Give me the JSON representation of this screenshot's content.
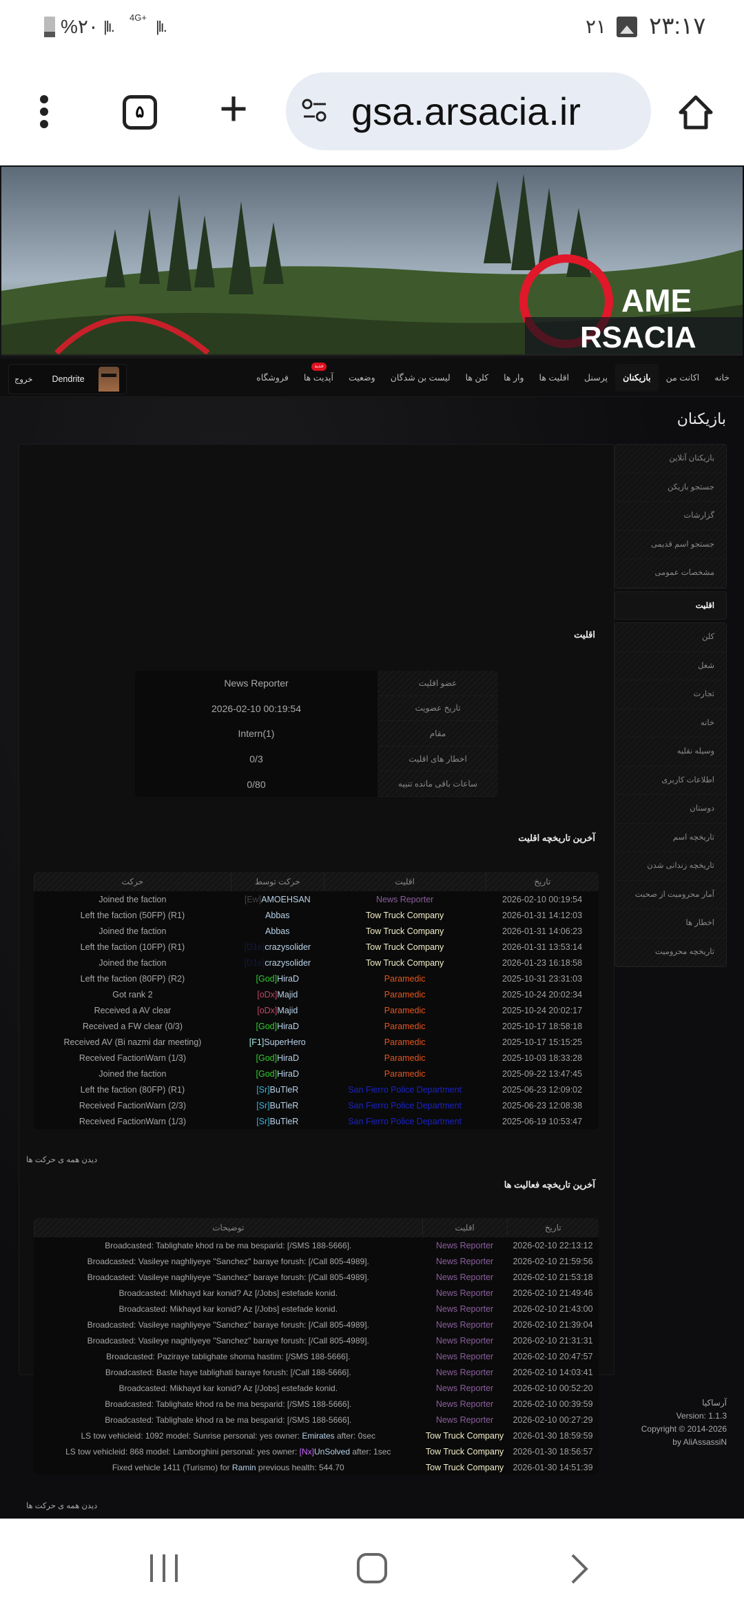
{
  "status_bar": {
    "time": "۲۳:۱۷",
    "notif_count": "۲۱",
    "battery": "%۲۰",
    "network": "4G+",
    "icons": [
      "gallery-icon",
      "battery-icon",
      "signal-icon"
    ]
  },
  "browser": {
    "url": "gsa.arsacia.ir",
    "tab_count": "۵",
    "icons": [
      "menu-dots-icon",
      "tabs-icon",
      "plus-icon",
      "site-settings-icon",
      "home-icon"
    ]
  },
  "banner": {
    "logo_text_top": "AME",
    "logo_text_bottom": "RSACIA",
    "brand_color": "#e0182a"
  },
  "nav": {
    "items": [
      "خانه",
      "اکانت من",
      "بازیکنان",
      "پرسنل",
      "اقلیت ها",
      "وار ها",
      "کلن ها",
      "لیست بن شدگان",
      "وضعیت",
      "آپدیت ها",
      "فروشگاه"
    ],
    "active_index": 2,
    "badge": "جدید",
    "badge_index": 9,
    "user": "Dendrite",
    "logout": "خروج"
  },
  "page_title": "بازیکنان",
  "sidebar": {
    "group1": [
      "بازیکنان آنلاین",
      "جستجو بازیکن",
      "گزارشات",
      "جستجو اسم قدیمی",
      "مشخصات عمومی"
    ],
    "active": "اقلیت",
    "group2": [
      "کلن",
      "شغل",
      "تجارت",
      "خانه",
      "وسیله نقلیه",
      "اطلاعات کاربری",
      "دوستان",
      "تاریخچه اسم",
      "تاریخچه زندانی شدن",
      "آمار محرومیت از صحبت",
      "اخطار ها",
      "تاریخچه محرومیت"
    ]
  },
  "faction_section": {
    "title": "اقلیت",
    "rows": [
      {
        "label": "عضو اقلیت",
        "value": "News Reporter"
      },
      {
        "label": "تاریخ عضویت",
        "value": "2026-02-10 00:19:54"
      },
      {
        "label": "مقام",
        "value": "Intern(1)"
      },
      {
        "label": "اخطار های اقلیت",
        "value": "0/3"
      },
      {
        "label": "ساعات باقی مانده تنبیه",
        "value": "0/80"
      }
    ]
  },
  "faction_colors": {
    "News Reporter": "#8c5f9f",
    "Tow Truck Company": "#f4efc8",
    "Paramedic": "#e5561f",
    "San Fierro Police Department": "#1a22c8"
  },
  "faction_history": {
    "title": "آخرین تاریخچه اقلیت",
    "headers": [
      "تاریخ",
      "اقلیت",
      "حرکت توسط",
      "حرکت"
    ],
    "view_all": "دیدن همه ی حرکت ها",
    "rows": [
      {
        "date": "2026-02-10 00:19:54",
        "faction": "News Reporter",
        "tag": "[Ew]",
        "tag_color": "#444444",
        "name": "AMOEHSAN",
        "action": "Joined the faction"
      },
      {
        "date": "2026-01-31 14:12:03",
        "faction": "Tow Truck Company",
        "tag": "",
        "tag_color": "",
        "name": "Abbas",
        "action": "Left the faction (50FP) (R1)"
      },
      {
        "date": "2026-01-31 14:06:23",
        "faction": "Tow Truck Company",
        "tag": "",
        "tag_color": "",
        "name": "Abbas",
        "action": "Joined the faction"
      },
      {
        "date": "2026-01-31 13:53:14",
        "faction": "Tow Truck Company",
        "tag": "[D1e]",
        "tag_color": "#141640",
        "name": "crazysolider",
        "action": "Left the faction (10FP) (R1)"
      },
      {
        "date": "2026-01-23 16:18:58",
        "faction": "Tow Truck Company",
        "tag": "[D1e]",
        "tag_color": "#141640",
        "name": "crazysolider",
        "action": "Joined the faction"
      },
      {
        "date": "2025-10-31 23:31:03",
        "faction": "Paramedic",
        "tag": "[God]",
        "tag_color": "#33cc33",
        "name": "HiraD",
        "action": "Left the faction (80FP) (R2)"
      },
      {
        "date": "2025-10-24 20:02:34",
        "faction": "Paramedic",
        "tag": "[oDx]",
        "tag_color": "#c8456a",
        "name": "Majid",
        "action": "Got rank 2"
      },
      {
        "date": "2025-10-24 20:02:17",
        "faction": "Paramedic",
        "tag": "[oDx]",
        "tag_color": "#c8456a",
        "name": "Majid",
        "action": "Received a AV clear"
      },
      {
        "date": "2025-10-17 18:58:18",
        "faction": "Paramedic",
        "tag": "[God]",
        "tag_color": "#33cc33",
        "name": "HiraD",
        "action": "Received a FW clear (0/3)"
      },
      {
        "date": "2025-10-17 15:15:25",
        "faction": "Paramedic",
        "tag": "[F1]",
        "tag_color": "#a8f0e8",
        "name": "SuperHero",
        "action": "Received AV (Bi nazmi dar meeting)"
      },
      {
        "date": "2025-10-03 18:33:28",
        "faction": "Paramedic",
        "tag": "[God]",
        "tag_color": "#33cc33",
        "name": "HiraD",
        "action": "Received FactionWarn (1/3)"
      },
      {
        "date": "2025-09-22 13:47:45",
        "faction": "Paramedic",
        "tag": "[God]",
        "tag_color": "#33cc33",
        "name": "HiraD",
        "action": "Joined the faction"
      },
      {
        "date": "2025-06-23 12:09:02",
        "faction": "San Fierro Police Department",
        "tag": "[Sr]",
        "tag_color": "#3ab4d8",
        "name": "BuTleR",
        "action": "Left the faction (80FP) (R1)"
      },
      {
        "date": "2025-06-23 12:08:38",
        "faction": "San Fierro Police Department",
        "tag": "[Sr]",
        "tag_color": "#3ab4d8",
        "name": "BuTleR",
        "action": "Received FactionWarn (2/3)"
      },
      {
        "date": "2025-06-19 10:53:47",
        "faction": "San Fierro Police Department",
        "tag": "[Sr]",
        "tag_color": "#3ab4d8",
        "name": "BuTleR",
        "action": "Received FactionWarn (1/3)"
      }
    ]
  },
  "activity_history": {
    "title": "آخرین تاریخچه فعالیت ها",
    "headers": [
      "تاریخ",
      "اقلیت",
      "توضیحات"
    ],
    "view_all": "دیدن همه ی حرکت ها",
    "rows": [
      {
        "date": "2026-02-10 22:13:12",
        "faction": "News Reporter",
        "pre": "Broadcasted: Tablighate khod ra be ma besparid: [/SMS 188-5666].",
        "tag": "",
        "tag_color": "",
        "name": "",
        "post": ""
      },
      {
        "date": "2026-02-10 21:59:56",
        "faction": "News Reporter",
        "pre": "Broadcasted: Vasileye naghliyeye \"Sanchez\" baraye forush: [/Call 805-4989].",
        "tag": "",
        "tag_color": "",
        "name": "",
        "post": ""
      },
      {
        "date": "2026-02-10 21:53:18",
        "faction": "News Reporter",
        "pre": "Broadcasted: Vasileye naghliyeye \"Sanchez\" baraye forush: [/Call 805-4989].",
        "tag": "",
        "tag_color": "",
        "name": "",
        "post": ""
      },
      {
        "date": "2026-02-10 21:49:46",
        "faction": "News Reporter",
        "pre": "Broadcasted: Mikhayd kar konid? Az [/Jobs] estefade konid.",
        "tag": "",
        "tag_color": "",
        "name": "",
        "post": ""
      },
      {
        "date": "2026-02-10 21:43:00",
        "faction": "News Reporter",
        "pre": "Broadcasted: Mikhayd kar konid? Az [/Jobs] estefade konid.",
        "tag": "",
        "tag_color": "",
        "name": "",
        "post": ""
      },
      {
        "date": "2026-02-10 21:39:04",
        "faction": "News Reporter",
        "pre": "Broadcasted: Vasileye naghliyeye \"Sanchez\" baraye forush: [/Call 805-4989].",
        "tag": "",
        "tag_color": "",
        "name": "",
        "post": ""
      },
      {
        "date": "2026-02-10 21:31:31",
        "faction": "News Reporter",
        "pre": "Broadcasted: Vasileye naghliyeye \"Sanchez\" baraye forush: [/Call 805-4989].",
        "tag": "",
        "tag_color": "",
        "name": "",
        "post": ""
      },
      {
        "date": "2026-02-10 20:47:57",
        "faction": "News Reporter",
        "pre": "Broadcasted: Paziraye tablighate shoma hastim: [/SMS 188-5666].",
        "tag": "",
        "tag_color": "",
        "name": "",
        "post": ""
      },
      {
        "date": "2026-02-10 14:03:41",
        "faction": "News Reporter",
        "pre": "Broadcasted: Baste haye tablighati baraye forush: [/Call 188-5666].",
        "tag": "",
        "tag_color": "",
        "name": "",
        "post": ""
      },
      {
        "date": "2026-02-10 00:52:20",
        "faction": "News Reporter",
        "pre": "Broadcasted: Mikhayd kar konid? Az [/Jobs] estefade konid.",
        "tag": "",
        "tag_color": "",
        "name": "",
        "post": ""
      },
      {
        "date": "2026-02-10 00:39:59",
        "faction": "News Reporter",
        "pre": "Broadcasted: Tablighate khod ra be ma besparid: [/SMS 188-5666].",
        "tag": "",
        "tag_color": "",
        "name": "",
        "post": ""
      },
      {
        "date": "2026-02-10 00:27:29",
        "faction": "News Reporter",
        "pre": "Broadcasted: Tablighate khod ra be ma besparid: [/SMS 188-5666].",
        "tag": "",
        "tag_color": "",
        "name": "",
        "post": ""
      },
      {
        "date": "2026-01-30 18:59:59",
        "faction": "Tow Truck Company",
        "pre": "LS tow vehicleid: 1092 model: Sunrise personal: yes owner: ",
        "tag": "",
        "tag_color": "",
        "name": "Emirates",
        "post": " after: 0sec"
      },
      {
        "date": "2026-01-30 18:56:57",
        "faction": "Tow Truck Company",
        "pre": "LS tow vehicleid: 868 model: Lamborghini personal: yes owner: ",
        "tag": "[Nx]",
        "tag_color": "#cc66ff",
        "name": "UnSolved",
        "post": " after: 1sec"
      },
      {
        "date": "2026-01-30 14:51:39",
        "faction": "Tow Truck Company",
        "pre": "Fixed vehicle 1411 (Turismo) for ",
        "tag": "",
        "tag_color": "",
        "name": "Ramin",
        "post": " previous health: 544.70"
      }
    ]
  },
  "footer": {
    "name": "آرساکیا",
    "version": "Version: 1.1.3",
    "copyright": "Copyright © 2014-2026",
    "author": "by AliAssassiN"
  },
  "system_nav": {
    "icons": [
      "recent-apps-icon",
      "home-circle-icon",
      "back-icon"
    ]
  }
}
